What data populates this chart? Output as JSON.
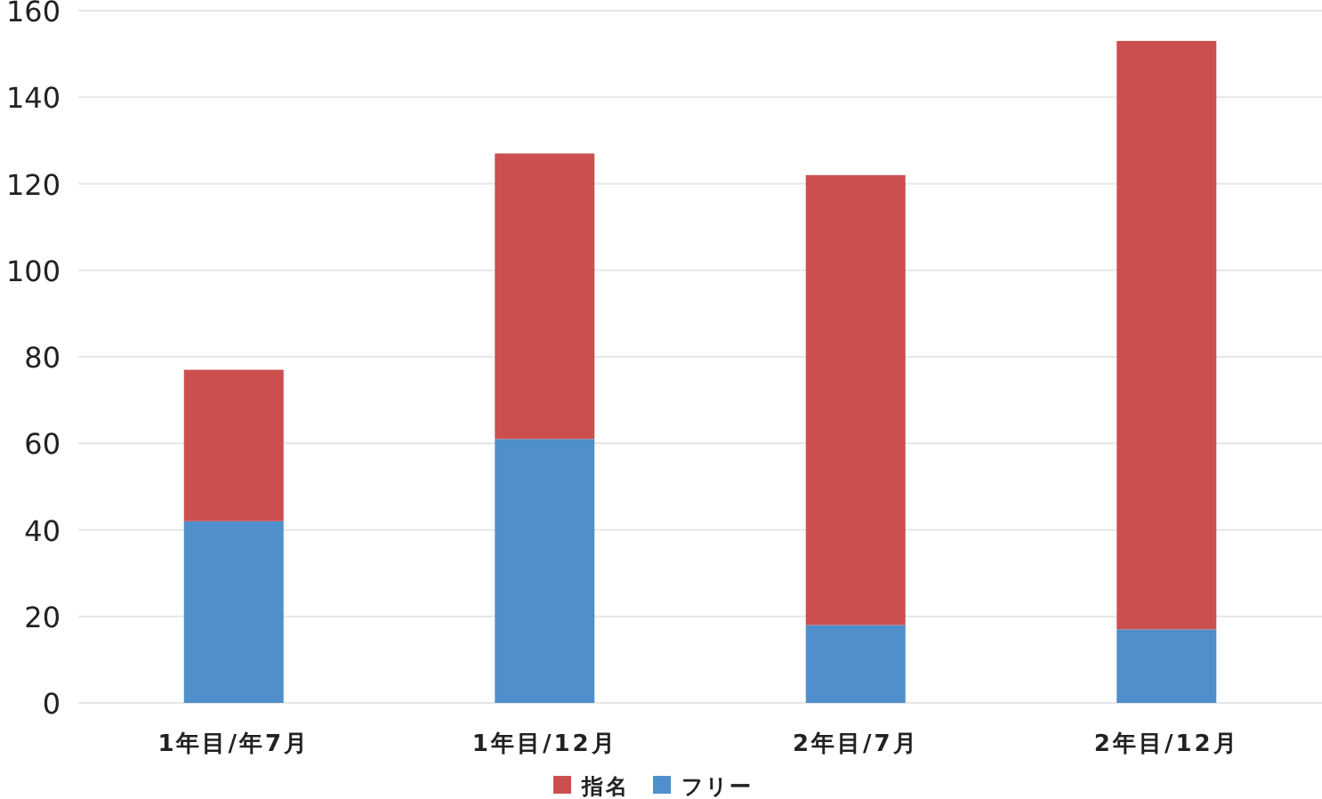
{
  "chart_data": {
    "type": "bar",
    "stacked": true,
    "categories": [
      "1年目/年7月",
      "1年目/12月",
      "2年目/7月",
      "2年目/12月"
    ],
    "series": [
      {
        "name": "フリー",
        "color": "#4f8fcc",
        "values": [
          42,
          61,
          18,
          17
        ]
      },
      {
        "name": "指名",
        "color": "#cc4f4f",
        "values": [
          35,
          66,
          104,
          136
        ]
      }
    ],
    "ylim": [
      0,
      160
    ],
    "yticks": [
      0,
      20,
      40,
      60,
      80,
      100,
      120,
      140,
      160
    ],
    "grid": "y",
    "legend": "bottom"
  }
}
